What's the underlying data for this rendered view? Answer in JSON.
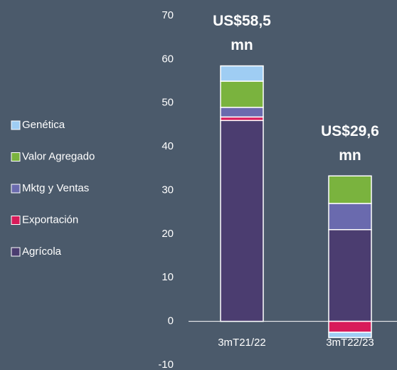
{
  "chart_data": {
    "type": "stacked_bar",
    "categories": [
      "3mT21/22",
      "3mT22/23"
    ],
    "series": [
      {
        "name": "Agrícola",
        "color": "#4b3d70",
        "values": [
          46,
          21
        ]
      },
      {
        "name": "Exportación",
        "color": "#d81b5a",
        "values": [
          0.8,
          -2.5
        ]
      },
      {
        "name": "Mktg y Ventas",
        "color": "#6a6aae",
        "values": [
          2.2,
          6
        ]
      },
      {
        "name": "Valor Agregado",
        "color": "#7ab33e",
        "values": [
          6,
          6.3
        ]
      },
      {
        "name": "Genética",
        "color": "#9fcdf3",
        "values": [
          3.5,
          -1.2
        ]
      }
    ],
    "annotations": [
      [
        "US$58,5",
        "mn"
      ],
      [
        "US$29,6",
        "mn"
      ]
    ],
    "ylim": [
      -10,
      70
    ],
    "yticks": [
      -10,
      0,
      10,
      20,
      30,
      40,
      50,
      60,
      70
    ],
    "legend": "left"
  }
}
